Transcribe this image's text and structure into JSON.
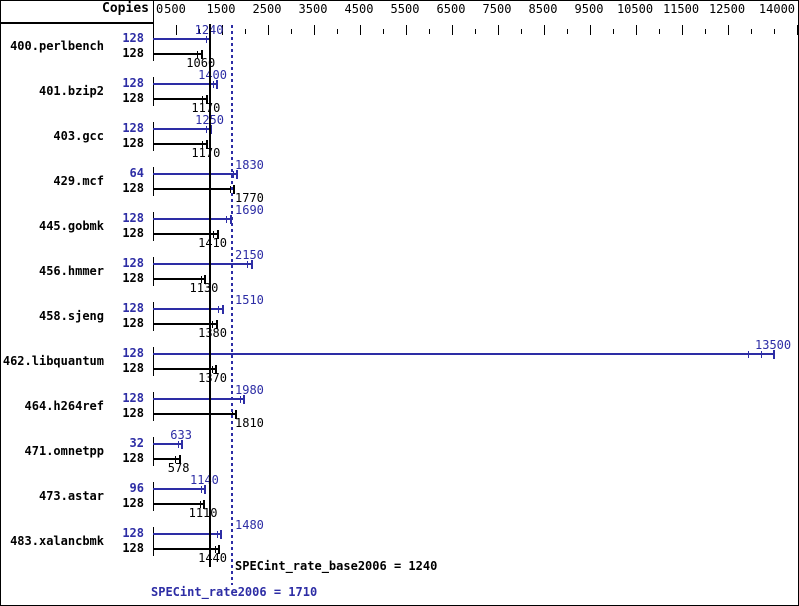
{
  "header": {
    "copies_label": "Copies"
  },
  "colors": {
    "peak": "#2d2da5",
    "base": "#000000",
    "background": "#ffffff"
  },
  "summary": {
    "base_text": "SPECint_rate_base2006 = 1240",
    "peak_text": "SPECint_rate2006 = 1710"
  },
  "chart_data": {
    "type": "bar",
    "orientation": "horizontal",
    "title": "",
    "xlabel": "",
    "column_header": "Copies",
    "xlim": [
      0,
      14000
    ],
    "tick_step": 500,
    "labeled_ticks": [
      0,
      500,
      1500,
      2500,
      3500,
      4500,
      5500,
      6500,
      7500,
      8500,
      9500,
      10500,
      11500,
      12500,
      14000
    ],
    "categories": [
      "400.perlbench",
      "401.bzip2",
      "403.gcc",
      "429.mcf",
      "445.gobmk",
      "456.hmmer",
      "458.sjeng",
      "462.libquantum",
      "464.h264ref",
      "471.omnetpp",
      "473.astar",
      "483.xalancbmk"
    ],
    "series": [
      {
        "name": "peak",
        "color": "#2d2da5",
        "copies": [
          128,
          128,
          128,
          64,
          128,
          128,
          128,
          128,
          128,
          32,
          96,
          128
        ],
        "values": [
          1240,
          1400,
          1250,
          1830,
          1690,
          2150,
          1510,
          13500,
          1980,
          633,
          1140,
          1480
        ]
      },
      {
        "name": "base",
        "color": "#000000",
        "copies": [
          128,
          128,
          128,
          128,
          128,
          128,
          128,
          128,
          128,
          128,
          128,
          128
        ],
        "values": [
          1060,
          1170,
          1170,
          1770,
          1410,
          1130,
          1380,
          1370,
          1810,
          578,
          1110,
          1440
        ]
      }
    ],
    "reference_lines": [
      {
        "name": "SPECint_rate_base2006",
        "value": 1240,
        "style": "solid",
        "color": "#000000"
      },
      {
        "name": "SPECint_rate2006",
        "value": 1710,
        "style": "dotted",
        "color": "#2d2da5"
      }
    ],
    "legend_position": "none",
    "grid": false
  }
}
